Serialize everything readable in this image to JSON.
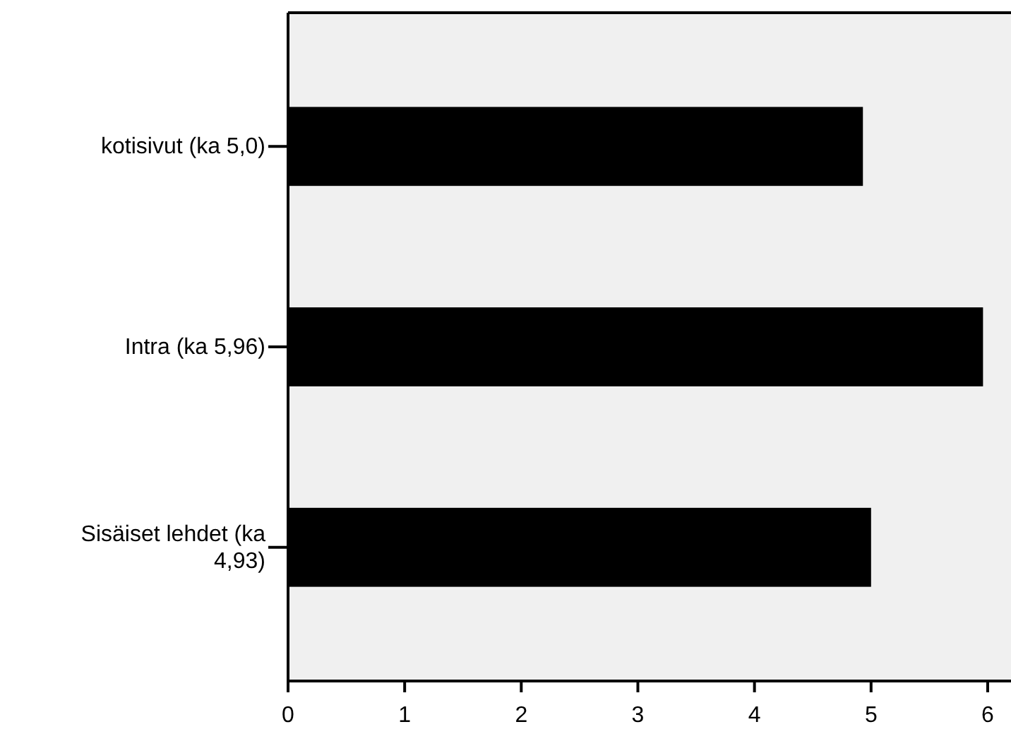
{
  "chart_data": {
    "type": "bar",
    "orientation": "horizontal",
    "categories": [
      "kotisivut (ka 5,0)",
      "Intra (ka 5,96)",
      "Sisäiset lehdet (ka 4,93)"
    ],
    "values": [
      4.93,
      5.96,
      5.0
    ],
    "color": "#000000",
    "xlim": [
      0,
      6.2
    ],
    "xticks": [
      0,
      1,
      2,
      3,
      4,
      5,
      6
    ]
  }
}
